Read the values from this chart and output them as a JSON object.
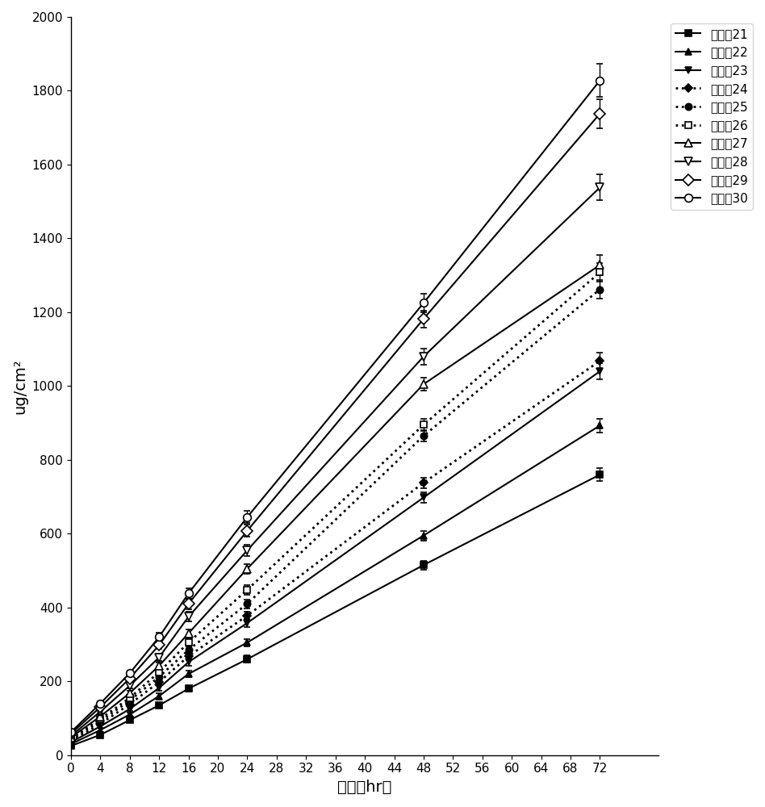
{
  "x_points": [
    0,
    4,
    8,
    12,
    16,
    24,
    48,
    72
  ],
  "series": [
    {
      "label": "实施例21",
      "y": [
        25,
        55,
        95,
        135,
        180,
        260,
        515,
        760
      ],
      "yerr": [
        3,
        5,
        5,
        6,
        8,
        10,
        12,
        18
      ],
      "marker": "s",
      "markersize": 6,
      "markerfacecolor": "black",
      "markeredgecolor": "black",
      "linestyle": "-",
      "linewidth": 1.5,
      "color": "black"
    },
    {
      "label": "实施例22",
      "y": [
        30,
        68,
        110,
        160,
        220,
        305,
        595,
        893
      ],
      "yerr": [
        3,
        5,
        5,
        7,
        9,
        10,
        13,
        18
      ],
      "marker": "^",
      "markersize": 6,
      "markerfacecolor": "black",
      "markeredgecolor": "black",
      "linestyle": "-",
      "linewidth": 1.5,
      "color": "black"
    },
    {
      "label": "实施例23",
      "y": [
        35,
        78,
        125,
        182,
        252,
        358,
        698,
        1040
      ],
      "yerr": [
        3,
        5,
        6,
        8,
        9,
        11,
        14,
        22
      ],
      "marker": "v",
      "markersize": 6,
      "markerfacecolor": "black",
      "markeredgecolor": "black",
      "linestyle": "-",
      "linewidth": 1.5,
      "color": "black"
    },
    {
      "label": "实施例24",
      "y": [
        38,
        85,
        138,
        198,
        268,
        378,
        738,
        1068
      ],
      "yerr": [
        3,
        5,
        6,
        8,
        10,
        11,
        14,
        22
      ],
      "marker": "D",
      "markersize": 5,
      "markerfacecolor": "black",
      "markeredgecolor": "black",
      "linestyle": ":",
      "linewidth": 2.0,
      "color": "black"
    },
    {
      "label": "实施例25",
      "y": [
        42,
        92,
        148,
        212,
        285,
        410,
        865,
        1262
      ],
      "yerr": [
        3,
        5,
        6,
        8,
        10,
        12,
        16,
        25
      ],
      "marker": "o",
      "markersize": 6,
      "markerfacecolor": "black",
      "markeredgecolor": "black",
      "linestyle": ":",
      "linewidth": 2.0,
      "color": "black"
    },
    {
      "label": "实施例26",
      "y": [
        45,
        98,
        155,
        225,
        305,
        448,
        895,
        1308
      ],
      "yerr": [
        3,
        5,
        7,
        9,
        11,
        13,
        17,
        25
      ],
      "marker": "s",
      "markersize": 6,
      "markerfacecolor": "white",
      "markeredgecolor": "black",
      "linestyle": ":",
      "linewidth": 2.0,
      "color": "black"
    },
    {
      "label": "实施例27",
      "y": [
        48,
        105,
        168,
        242,
        330,
        505,
        1005,
        1328
      ],
      "yerr": [
        3,
        5,
        7,
        9,
        11,
        13,
        18,
        28
      ],
      "marker": "^",
      "markersize": 7,
      "markerfacecolor": "white",
      "markeredgecolor": "black",
      "linestyle": "-",
      "linewidth": 1.5,
      "color": "black"
    },
    {
      "label": "实施例28",
      "y": [
        52,
        118,
        188,
        265,
        375,
        555,
        1080,
        1538
      ],
      "yerr": [
        3,
        5,
        7,
        10,
        13,
        15,
        22,
        35
      ],
      "marker": "v",
      "markersize": 7,
      "markerfacecolor": "white",
      "markeredgecolor": "black",
      "linestyle": "-",
      "linewidth": 1.5,
      "color": "black"
    },
    {
      "label": "实施例29",
      "y": [
        58,
        130,
        208,
        298,
        410,
        608,
        1182,
        1738
      ],
      "yerr": [
        3,
        5,
        8,
        10,
        14,
        16,
        23,
        40
      ],
      "marker": "D",
      "markersize": 7,
      "markerfacecolor": "white",
      "markeredgecolor": "black",
      "linestyle": "-",
      "linewidth": 1.5,
      "color": "black"
    },
    {
      "label": "实施例30",
      "y": [
        62,
        140,
        222,
        320,
        438,
        645,
        1225,
        1828
      ],
      "yerr": [
        3,
        5,
        8,
        11,
        14,
        17,
        25,
        45
      ],
      "marker": "o",
      "markersize": 7,
      "markerfacecolor": "white",
      "markeredgecolor": "black",
      "linestyle": "-",
      "linewidth": 1.5,
      "color": "black"
    }
  ],
  "xlabel": "时间（hr）",
  "ylabel": "ug/cm²",
  "xlim": [
    0,
    80
  ],
  "ylim": [
    0,
    2000
  ],
  "xticks": [
    0,
    4,
    8,
    12,
    16,
    20,
    24,
    28,
    32,
    36,
    40,
    44,
    48,
    52,
    56,
    60,
    64,
    68,
    72
  ],
  "yticks": [
    0,
    200,
    400,
    600,
    800,
    1000,
    1200,
    1400,
    1600,
    1800,
    2000
  ],
  "background_color": "#ffffff",
  "legend_labels": [
    "实施例21",
    "实施例22",
    "实施例23",
    "实施例24",
    "实施例25",
    "实施例26",
    "实施例27",
    "实施例28",
    "实施例29",
    "实施例30"
  ]
}
